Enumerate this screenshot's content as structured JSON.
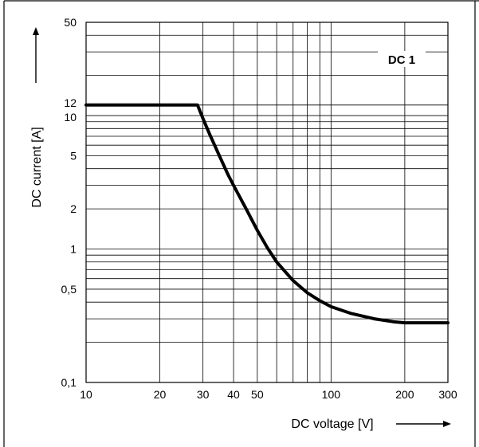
{
  "chart_data": {
    "type": "line",
    "x_scale": "log",
    "y_scale": "log",
    "xlim": [
      10,
      300
    ],
    "ylim": [
      0.1,
      50
    ],
    "xlabel": "DC voltage [V]",
    "ylabel": "DC current [A]",
    "x_ticks": [
      {
        "value": 10,
        "label": "10"
      },
      {
        "value": 20,
        "label": "20"
      },
      {
        "value": 30,
        "label": "30"
      },
      {
        "value": 40,
        "label": "40"
      },
      {
        "value": 50,
        "label": "50"
      },
      {
        "value": 100,
        "label": "100"
      },
      {
        "value": 200,
        "label": "200"
      },
      {
        "value": 300,
        "label": "300"
      }
    ],
    "y_ticks": [
      {
        "value": 0.1,
        "label": "0,1"
      },
      {
        "value": 0.5,
        "label": "0,5"
      },
      {
        "value": 1,
        "label": "1"
      },
      {
        "value": 2,
        "label": "2"
      },
      {
        "value": 5,
        "label": "5"
      },
      {
        "value": 10,
        "label": "10"
      },
      {
        "value": 12,
        "label": "12"
      },
      {
        "value": 50,
        "label": "50"
      }
    ],
    "x_gridlines": [
      10,
      20,
      30,
      40,
      50,
      60,
      70,
      80,
      90,
      100,
      200,
      300
    ],
    "y_gridlines": [
      0.1,
      0.2,
      0.3,
      0.4,
      0.5,
      0.6,
      0.7,
      0.8,
      0.9,
      1,
      2,
      3,
      4,
      5,
      6,
      7,
      8,
      9,
      10,
      12,
      20,
      30,
      40,
      50
    ],
    "grid": true,
    "series": [
      {
        "name": "DC 1",
        "x": [
          10,
          15,
          20,
          25,
          28.5,
          30,
          32,
          35,
          38,
          40,
          45,
          50,
          55,
          60,
          70,
          80,
          90,
          100,
          120,
          150,
          180,
          200,
          250,
          300
        ],
        "y": [
          12,
          12,
          12,
          12,
          12,
          9.5,
          7.2,
          5.0,
          3.6,
          3.0,
          2.0,
          1.38,
          1.02,
          0.8,
          0.58,
          0.47,
          0.41,
          0.37,
          0.33,
          0.3,
          0.285,
          0.28,
          0.28,
          0.28
        ]
      }
    ],
    "legend": "top-right"
  }
}
